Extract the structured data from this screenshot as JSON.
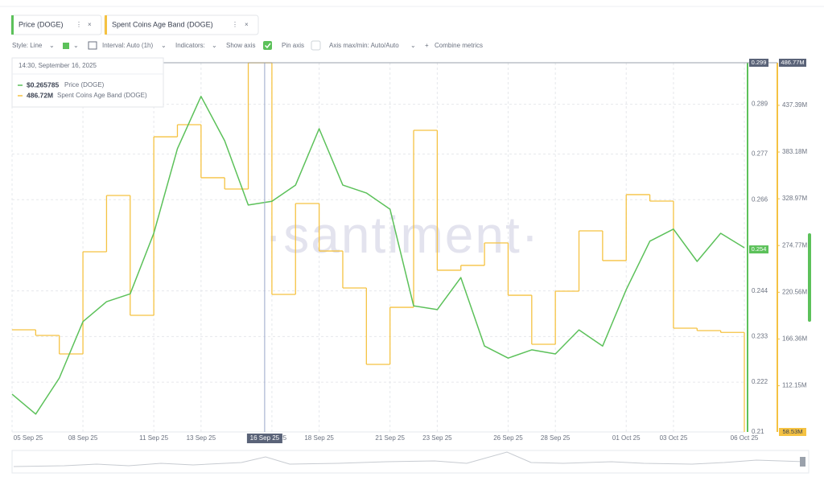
{
  "tabs": [
    {
      "series": 0
    },
    {
      "series": 1
    }
  ],
  "toolbar": {
    "style": "Style: Line",
    "interval": "Interval: Auto (1h)",
    "indicators": "Indicators:",
    "show_axis": "Show axis",
    "pin_axis": "Pin axis",
    "axis_maxmin": "Axis max/min: Auto/Auto",
    "combine": "Combine metrics"
  },
  "tooltip": {
    "time": "14:30, September 16, 2025",
    "rows": [
      {
        "value": 0.265785,
        "label": "$0.265785"
      },
      {
        "value": 486.72,
        "label": "486.72M"
      }
    ]
  },
  "chart_data": {
    "type": "line",
    "watermark": "·santiment·",
    "grid": true,
    "categories": [
      "05 Sep 25",
      null,
      null,
      "08 Sep 25",
      null,
      null,
      "11 Sep 25",
      null,
      "13 Sep 25",
      null,
      null,
      "16 Sep 25",
      null,
      "18 Sep 25",
      null,
      null,
      "21 Sep 25",
      null,
      "23 Sep 25",
      null,
      null,
      "26 Sep 25",
      null,
      "28 Sep 25",
      null,
      null,
      "01 Oct 25",
      null,
      "03 Oct 25",
      null,
      null,
      "06 Oct 25"
    ],
    "series": [
      {
        "name": "Price (DOGE)",
        "color": "#5cc15a",
        "values": [
          0.2191,
          0.2143,
          0.223,
          0.2366,
          0.2414,
          0.2433,
          0.2579,
          0.2783,
          0.2909,
          0.2802,
          0.2647,
          0.2656,
          0.2695,
          0.2831,
          0.2695,
          0.2676,
          0.2637,
          0.2404,
          0.2395,
          0.2472,
          0.2307,
          0.2278,
          0.2298,
          0.2288,
          0.2346,
          0.2307,
          0.2443,
          0.256,
          0.2589,
          0.2511,
          0.2579,
          0.2544
        ]
      },
      {
        "name": "Spent Coins Age Band (DOGE)",
        "color": "#f5c242",
        "axis": "y2",
        "step": true,
        "values": [
          177.0,
          170.5,
          149.0,
          267.5,
          332.8,
          193.8,
          400.9,
          414.9,
          353.4,
          340.3,
          486.72,
          218.1,
          323.5,
          268.4,
          225.5,
          136.9,
          203.1,
          408.4,
          246.1,
          251.7,
          277.8,
          217.1,
          160.2,
          221.8,
          291.8,
          257.3,
          333.8,
          326.3,
          178.9,
          176.1,
          174.0,
          58.53
        ]
      }
    ],
    "ylim": [
      0.21,
      0.299
    ],
    "yticks": [
      0.21,
      0.222,
      0.233,
      0.244,
      0.266,
      0.277,
      0.289
    ],
    "y2lim": [
      58.53,
      486.77
    ],
    "y2ticks": [
      {
        "value": 112.15,
        "label": "112.15M"
      },
      {
        "value": 166.36,
        "label": "166.36M"
      },
      {
        "value": 220.56,
        "label": "220.56M"
      },
      {
        "value": 274.77,
        "label": "274.77M"
      },
      {
        "value": 328.97,
        "label": "328.97M"
      },
      {
        "value": 383.18,
        "label": "383.18M"
      },
      {
        "value": 437.39,
        "label": "437.39M"
      }
    ],
    "markers": [
      {
        "axis": "y",
        "kind": "crosshair",
        "value": 0.299
      },
      {
        "axis": "y2",
        "kind": "crosshair",
        "value": 486.77,
        "label": "486.77M"
      },
      {
        "axis": "y",
        "kind": "last",
        "value": 0.254
      },
      {
        "axis": "y2",
        "kind": "last",
        "value": 58.53,
        "label": "58.53M"
      }
    ]
  }
}
